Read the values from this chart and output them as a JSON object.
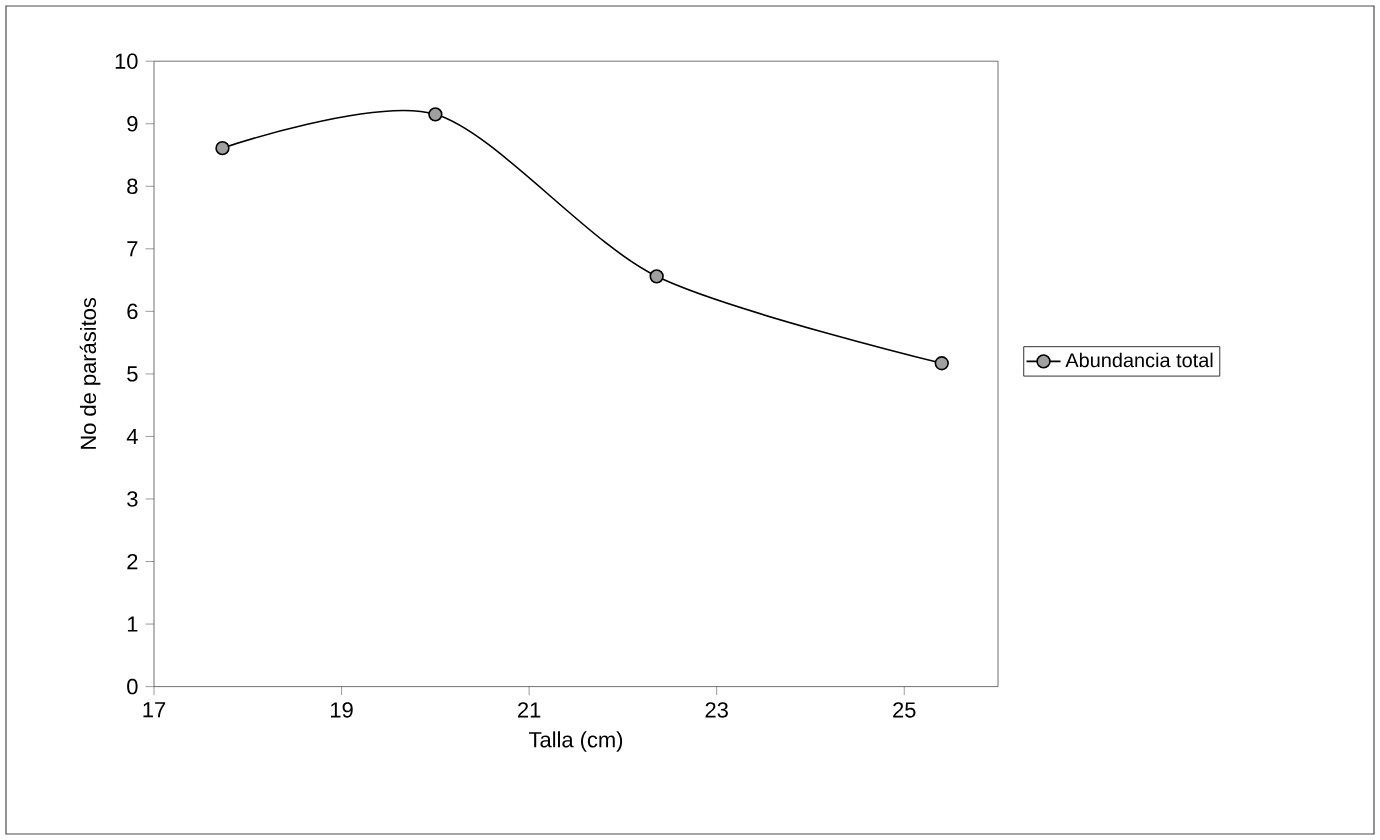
{
  "chart_data": {
    "type": "line",
    "xlabel": "Talla (cm)",
    "ylabel": "No de parásitos",
    "xlim": [
      17,
      26
    ],
    "xticks": [
      17,
      19,
      21,
      23,
      25
    ],
    "ylim": [
      0,
      10
    ],
    "yticks": [
      0,
      1,
      2,
      3,
      4,
      5,
      6,
      7,
      8,
      9,
      10
    ],
    "series": [
      {
        "name": "Abundancia total",
        "color": "#a0a0a0",
        "x": [
          17.73,
          20.0,
          22.36,
          25.4
        ],
        "values": [
          8.61,
          9.15,
          6.56,
          5.17
        ]
      }
    ],
    "marker": "circle",
    "line_style": "solid",
    "legend": "right",
    "grid": false
  }
}
